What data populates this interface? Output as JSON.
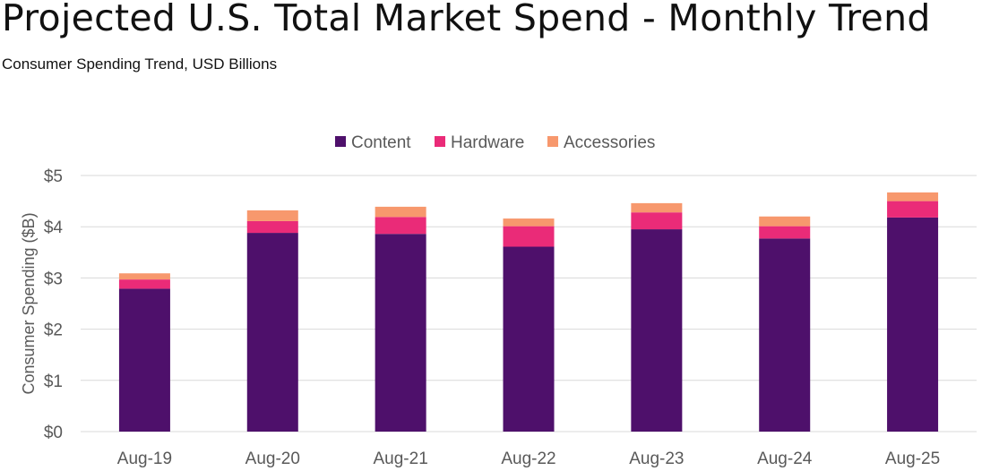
{
  "chart_data": {
    "type": "bar",
    "stacked": true,
    "title": "Projected U.S. Total Market Spend - Monthly Trend",
    "subtitle": "Consumer Spending Trend, USD Billions",
    "xlabel": "",
    "ylabel": "Consumer Spending ($B)",
    "ylim": [
      0,
      5
    ],
    "yticks": [
      "$0",
      "$1",
      "$2",
      "$3",
      "$4",
      "$5"
    ],
    "grid": true,
    "legend_position": "top",
    "categories": [
      "Aug-19",
      "Aug-20",
      "Aug-21",
      "Aug-22",
      "Aug-23",
      "Aug-24",
      "Aug-25"
    ],
    "series": [
      {
        "name": "Content",
        "color": "#4e106b",
        "values": [
          2.79,
          3.88,
          3.86,
          3.61,
          3.95,
          3.77,
          4.18
        ]
      },
      {
        "name": "Hardware",
        "color": "#ea2b78",
        "values": [
          0.18,
          0.23,
          0.33,
          0.4,
          0.33,
          0.24,
          0.32
        ]
      },
      {
        "name": "Accessories",
        "color": "#f7986d",
        "values": [
          0.12,
          0.21,
          0.2,
          0.15,
          0.18,
          0.19,
          0.17
        ]
      }
    ]
  }
}
